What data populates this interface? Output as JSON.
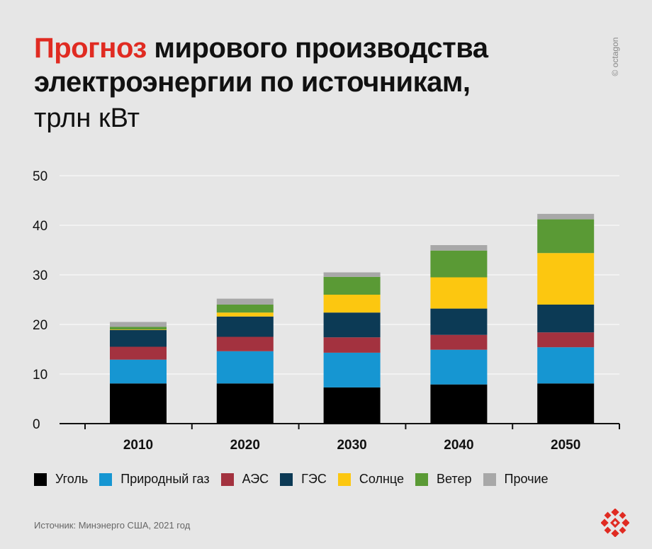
{
  "header": {
    "title_highlight": "Прогноз",
    "title_line1_rest": " мирового производства",
    "title_line2": "электроэнергии по источникам,",
    "unit": "трлн кВт"
  },
  "brand": {
    "text": "© octagon"
  },
  "colors": {
    "background": "#e6e6e6",
    "accent": "#e02b22",
    "coal": "#000000",
    "gas": "#1696d2",
    "nuclear": "#a3323f",
    "hydro": "#0c3a55",
    "solar": "#fcc710",
    "wind": "#5a9a35",
    "other": "#a8a8a8"
  },
  "chart_data": {
    "type": "bar",
    "stacked": true,
    "title": "Прогноз мирового производства электроэнергии по источникам, трлн кВт",
    "xlabel": "",
    "ylabel": "",
    "ylim": [
      0,
      50
    ],
    "yticks": [
      0,
      10,
      20,
      30,
      40,
      50
    ],
    "grid": true,
    "legend_position": "bottom",
    "categories": [
      "2010",
      "2020",
      "2030",
      "2040",
      "2050"
    ],
    "series": [
      {
        "name": "Уголь",
        "color": "#000000",
        "values": [
          8.1,
          8.1,
          7.3,
          7.9,
          8.1
        ]
      },
      {
        "name": "Природный газ",
        "color": "#1696d2",
        "values": [
          4.8,
          6.5,
          7.0,
          7.0,
          7.3
        ]
      },
      {
        "name": "АЭС",
        "color": "#a3323f",
        "values": [
          2.6,
          2.9,
          3.1,
          3.0,
          3.0
        ]
      },
      {
        "name": "ГЭС",
        "color": "#0c3a55",
        "values": [
          3.4,
          4.1,
          5.0,
          5.3,
          5.6
        ]
      },
      {
        "name": "Солнце",
        "color": "#fcc710",
        "values": [
          0.1,
          0.8,
          3.6,
          6.3,
          10.4
        ]
      },
      {
        "name": "Ветер",
        "color": "#5a9a35",
        "values": [
          0.5,
          1.6,
          3.6,
          5.4,
          6.8
        ]
      },
      {
        "name": "Прочие",
        "color": "#a8a8a8",
        "values": [
          1.0,
          1.2,
          0.9,
          1.1,
          1.1
        ]
      }
    ]
  },
  "source": "Источник: Минэнерго США, 2021 год",
  "logo": {
    "icon": "octagon-logo-icon"
  }
}
